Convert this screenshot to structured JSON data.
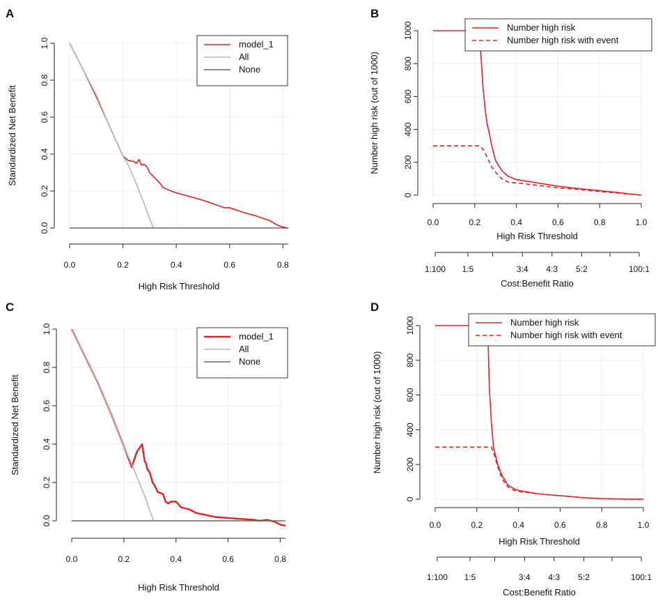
{
  "chart_data": [
    {
      "panel": "A",
      "type": "line",
      "title": "",
      "xlabel": "High Risk Threshold",
      "ylabel": "Standardized Net Benefit",
      "xlim": [
        0,
        0.82
      ],
      "ylim": [
        0,
        1.0
      ],
      "xticks": [
        "0.0",
        "0.2",
        "0.4",
        "0.6",
        "0.8"
      ],
      "yticks": [
        "0.0",
        "0.2",
        "0.4",
        "0.6",
        "0.8",
        "1.0"
      ],
      "grid": true,
      "legend_position": "top-right",
      "legend": [
        "model_1",
        "All",
        "None"
      ],
      "series": [
        {
          "name": "model_1",
          "color": "#e02020",
          "x": [
            0,
            0.05,
            0.1,
            0.15,
            0.2,
            0.22,
            0.24,
            0.25,
            0.26,
            0.27,
            0.28,
            0.29,
            0.3,
            0.32,
            0.34,
            0.35,
            0.38,
            0.4,
            0.45,
            0.5,
            0.55,
            0.58,
            0.6,
            0.65,
            0.7,
            0.75,
            0.78,
            0.8,
            0.82
          ],
          "values": [
            1.0,
            0.86,
            0.71,
            0.55,
            0.39,
            0.365,
            0.36,
            0.35,
            0.37,
            0.34,
            0.345,
            0.33,
            0.3,
            0.27,
            0.24,
            0.22,
            0.2,
            0.19,
            0.17,
            0.15,
            0.125,
            0.11,
            0.11,
            0.085,
            0.065,
            0.04,
            0.015,
            0.005,
            0.0
          ]
        },
        {
          "name": "All",
          "color": "#b5b5b5",
          "x": [
            0,
            0.05,
            0.1,
            0.15,
            0.2,
            0.22,
            0.25,
            0.28,
            0.3,
            0.315
          ],
          "values": [
            1.0,
            0.86,
            0.72,
            0.55,
            0.39,
            0.34,
            0.24,
            0.13,
            0.05,
            0.0
          ]
        },
        {
          "name": "None",
          "color": "#666666",
          "x": [
            0,
            0.82
          ],
          "values": [
            0,
            0
          ]
        }
      ]
    },
    {
      "panel": "B",
      "type": "line",
      "title": "",
      "xlabel": "High Risk Threshold",
      "ylabel": "Number high risk (out of 1000)",
      "xlim": [
        0,
        1
      ],
      "ylim": [
        0,
        1000
      ],
      "xticks": [
        "0.0",
        "0.2",
        "0.4",
        "0.6",
        "0.8",
        "1.0"
      ],
      "yticks": [
        "0",
        "200",
        "400",
        "600",
        "800",
        "1000"
      ],
      "secondary_axis_label": "Cost:Benefit Ratio",
      "secondary_ticks": [
        {
          "t": 0.0099,
          "label": "1:100"
        },
        {
          "t": 0.167,
          "label": "1:5"
        },
        {
          "t": 0.286,
          "label": ""
        },
        {
          "t": 0.429,
          "label": "3:4"
        },
        {
          "t": 0.571,
          "label": "4:3"
        },
        {
          "t": 0.714,
          "label": "5:2"
        },
        {
          "t": 0.85,
          "label": ""
        },
        {
          "t": 0.99,
          "label": "100:1"
        }
      ],
      "grid": true,
      "legend_position": "top-right",
      "legend": [
        "Number high risk",
        "Number high risk with event"
      ],
      "series": [
        {
          "name": "Number high risk",
          "color": "#e02020",
          "dash": false,
          "x": [
            0,
            0.22,
            0.228,
            0.24,
            0.25,
            0.26,
            0.27,
            0.28,
            0.3,
            0.33,
            0.36,
            0.4,
            0.5,
            0.6,
            0.7,
            0.8,
            0.9,
            1.0
          ],
          "values": [
            1000,
            1000,
            880,
            650,
            520,
            430,
            380,
            310,
            210,
            150,
            115,
            95,
            75,
            55,
            40,
            28,
            15,
            0
          ]
        },
        {
          "name": "Number high risk with event",
          "color": "#e02020",
          "dash": true,
          "x": [
            0,
            0.22,
            0.24,
            0.26,
            0.28,
            0.3,
            0.33,
            0.36,
            0.4,
            0.5,
            0.6,
            0.7,
            0.8,
            0.9,
            1.0
          ],
          "values": [
            300,
            300,
            280,
            230,
            175,
            140,
            100,
            80,
            75,
            60,
            45,
            35,
            22,
            12,
            0
          ]
        }
      ]
    },
    {
      "panel": "C",
      "type": "line",
      "title": "",
      "xlabel": "High Risk Threshold",
      "ylabel": "Standardized Net Benefit",
      "xlim": [
        0,
        0.82
      ],
      "ylim": [
        -0.02,
        1.0
      ],
      "xticks": [
        "0.0",
        "0.2",
        "0.4",
        "0.6",
        "0.8"
      ],
      "yticks": [
        "0.0",
        "0.2",
        "0.4",
        "0.6",
        "0.8",
        "1.0"
      ],
      "grid": true,
      "legend_position": "top-right",
      "legend": [
        "model_1",
        "All",
        "None"
      ],
      "series": [
        {
          "name": "model_1",
          "color": "#e02020",
          "x": [
            0,
            0.05,
            0.1,
            0.15,
            0.2,
            0.23,
            0.25,
            0.27,
            0.28,
            0.285,
            0.29,
            0.3,
            0.31,
            0.32,
            0.33,
            0.35,
            0.36,
            0.37,
            0.38,
            0.4,
            0.42,
            0.45,
            0.48,
            0.5,
            0.55,
            0.6,
            0.65,
            0.7,
            0.72,
            0.75,
            0.78,
            0.8,
            0.82
          ],
          "values": [
            1.0,
            0.86,
            0.72,
            0.56,
            0.39,
            0.28,
            0.36,
            0.4,
            0.31,
            0.3,
            0.27,
            0.25,
            0.2,
            0.18,
            0.15,
            0.14,
            0.1,
            0.09,
            0.1,
            0.1,
            0.07,
            0.06,
            0.04,
            0.035,
            0.02,
            0.015,
            0.01,
            0.005,
            0.0,
            0.005,
            -0.005,
            -0.02,
            -0.025
          ]
        },
        {
          "name": "All",
          "color": "#b5b5b5",
          "x": [
            0,
            0.05,
            0.1,
            0.15,
            0.2,
            0.25,
            0.28,
            0.3,
            0.315
          ],
          "values": [
            1.0,
            0.86,
            0.72,
            0.56,
            0.39,
            0.23,
            0.13,
            0.05,
            0.0
          ]
        },
        {
          "name": "None",
          "color": "#666666",
          "x": [
            0,
            0.82
          ],
          "values": [
            0,
            0
          ]
        }
      ]
    },
    {
      "panel": "D",
      "type": "line",
      "title": "",
      "xlabel": "High Risk Threshold",
      "ylabel": "Number high risk (out of 1000)",
      "xlim": [
        0,
        1
      ],
      "ylim": [
        0,
        1000
      ],
      "xticks": [
        "0.0",
        "0.2",
        "0.4",
        "0.6",
        "0.8",
        "1.0"
      ],
      "yticks": [
        "0",
        "200",
        "400",
        "600",
        "800",
        "1000"
      ],
      "secondary_axis_label": "Cost:Benefit Ratio",
      "secondary_ticks": [
        {
          "t": 0.0099,
          "label": "1:100"
        },
        {
          "t": 0.167,
          "label": "1:5"
        },
        {
          "t": 0.286,
          "label": ""
        },
        {
          "t": 0.429,
          "label": "3:4"
        },
        {
          "t": 0.571,
          "label": "4:3"
        },
        {
          "t": 0.714,
          "label": "5:2"
        },
        {
          "t": 0.85,
          "label": ""
        },
        {
          "t": 0.99,
          "label": "100:1"
        }
      ],
      "grid": true,
      "legend_position": "top-right",
      "legend": [
        "Number high risk",
        "Number high risk with event"
      ],
      "series": [
        {
          "name": "Number high risk",
          "color": "#e02020",
          "dash": false,
          "x": [
            0,
            0.25,
            0.255,
            0.26,
            0.27,
            0.28,
            0.3,
            0.32,
            0.35,
            0.38,
            0.4,
            0.5,
            0.6,
            0.7,
            0.8,
            0.9,
            1.0
          ],
          "values": [
            1000,
            1000,
            880,
            650,
            440,
            300,
            200,
            140,
            80,
            60,
            50,
            30,
            20,
            10,
            3,
            1,
            0
          ]
        },
        {
          "name": "Number high risk with event",
          "color": "#e02020",
          "dash": true,
          "x": [
            0,
            0.27,
            0.28,
            0.3,
            0.32,
            0.35,
            0.38,
            0.4,
            0.5,
            0.6,
            0.7,
            0.8,
            0.9,
            1.0
          ],
          "values": [
            300,
            300,
            270,
            190,
            120,
            70,
            50,
            45,
            30,
            20,
            10,
            3,
            1,
            0
          ]
        }
      ]
    }
  ]
}
